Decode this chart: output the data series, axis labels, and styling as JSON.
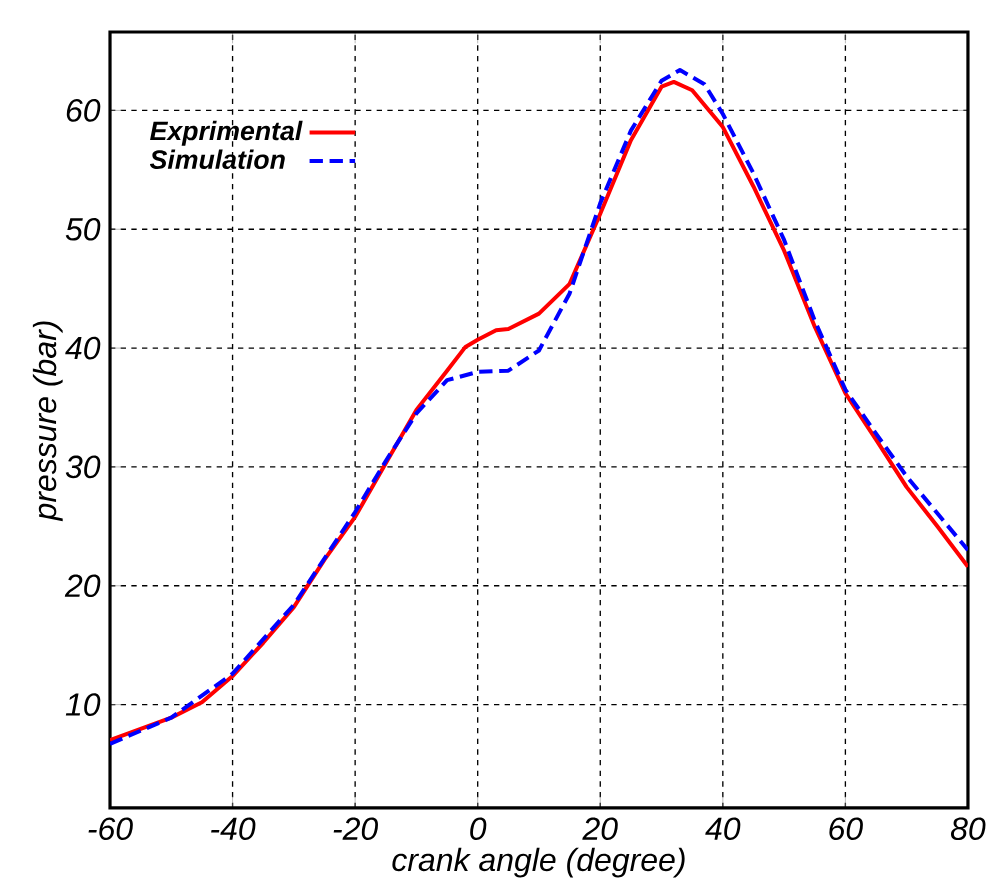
{
  "chart_data": {
    "type": "line",
    "xlabel": "crank angle (degree)",
    "ylabel": "pressure (bar)",
    "xlim": [
      -60,
      80
    ],
    "ylim": [
      1.3,
      66.6
    ],
    "xticks": [
      -60,
      -40,
      -20,
      0,
      20,
      40,
      60,
      80
    ],
    "yticks": [
      10,
      20,
      30,
      40,
      50,
      60
    ],
    "grid": true,
    "legend": "top left",
    "series": [
      {
        "name": "Exprimental",
        "color": "#ff0000",
        "line_style": "solid",
        "x": [
          -60,
          -50,
          -45,
          -40,
          -35,
          -30,
          -25,
          -20,
          -15,
          -10,
          -5,
          -2,
          0,
          3,
          5,
          10,
          15,
          20,
          25,
          30,
          32,
          35,
          40,
          45,
          50,
          55,
          60,
          65,
          70,
          75,
          80
        ],
        "values": [
          7.0,
          8.9,
          10.2,
          12.4,
          15.2,
          18.2,
          22.2,
          25.8,
          30.3,
          34.8,
          38.1,
          40.1,
          40.7,
          41.5,
          41.6,
          42.9,
          45.4,
          51.3,
          57.5,
          62.0,
          62.4,
          61.7,
          58.6,
          53.6,
          48.2,
          41.8,
          36.2,
          32.3,
          28.3,
          25.0,
          21.6
        ]
      },
      {
        "name": "Simulation",
        "color": "#0000ff",
        "line_style": "dashed",
        "x": [
          -60,
          -50,
          -40,
          -30,
          -20,
          -15,
          -10,
          -5,
          0,
          5,
          10,
          15,
          20,
          25,
          30,
          33,
          37,
          40,
          45,
          50,
          55,
          60,
          65,
          70,
          75,
          80
        ],
        "values": [
          6.7,
          8.9,
          12.6,
          18.4,
          26.2,
          30.5,
          34.5,
          37.3,
          38.0,
          38.1,
          39.8,
          44.6,
          52.2,
          58.3,
          62.5,
          63.4,
          62.2,
          59.7,
          54.7,
          49.1,
          42.3,
          36.5,
          32.8,
          29.2,
          26.1,
          23.0
        ]
      }
    ]
  }
}
